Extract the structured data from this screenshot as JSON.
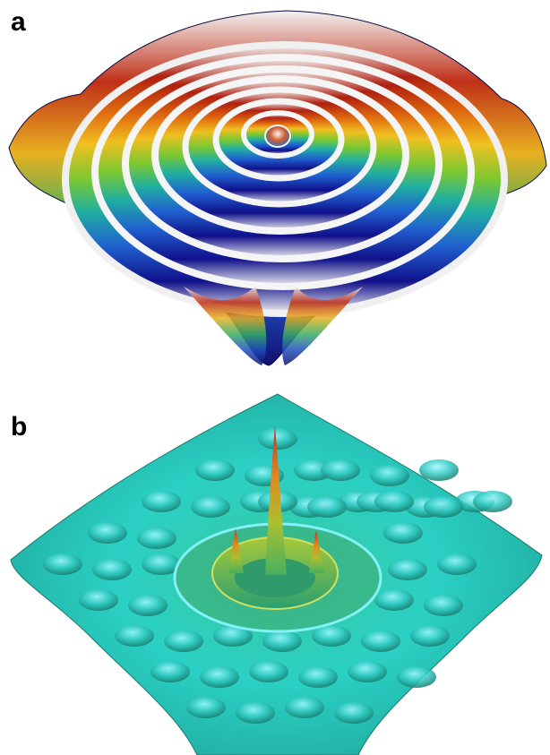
{
  "panels": [
    {
      "label": "a",
      "description_icon": "concentric-ring-surface",
      "colors": {
        "ring_stops": [
          "#b02010",
          "#e06a10",
          "#f0c020",
          "#a8d020",
          "#30b050",
          "#20b0c0",
          "#2060d0",
          "#1010a0",
          "#f2f2f2"
        ],
        "shadow": "#0a0a40"
      }
    },
    {
      "label": "b",
      "description_icon": "central-peak-interference-surface",
      "colors": {
        "base": "#27c7b8",
        "highlight": "#8ff5ff",
        "shade": "#1a7a6a",
        "peak_top": "#c0302a",
        "peak_mid": "#e0a020",
        "peak_base": "#5ab848"
      }
    }
  ]
}
